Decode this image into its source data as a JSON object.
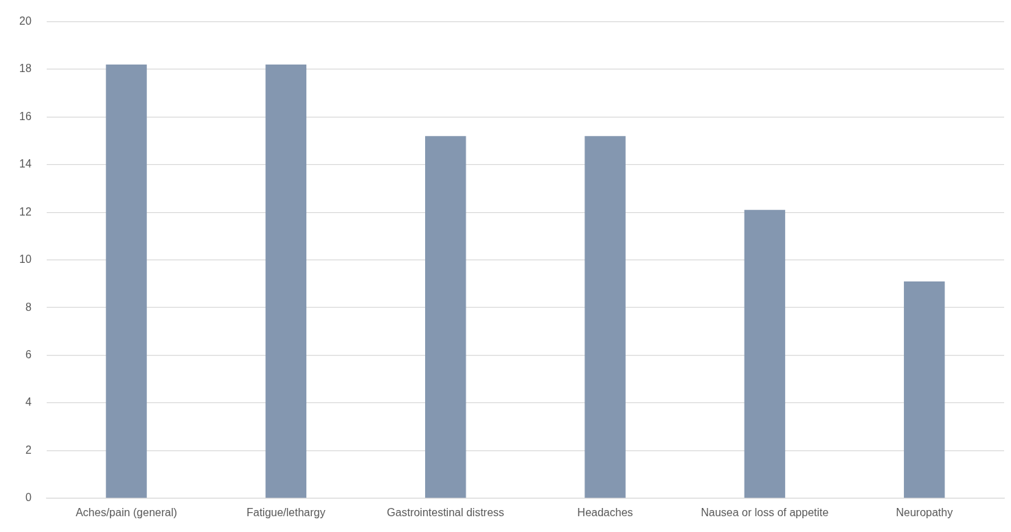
{
  "chart_data": {
    "type": "bar",
    "categories": [
      "Aches/pain (general)",
      "Fatigue/lethargy",
      "Gastrointestinal distress",
      "Headaches",
      "Nausea or loss of appetite",
      "Neuropathy"
    ],
    "values": [
      18.2,
      18.2,
      15.2,
      15.2,
      12.1,
      9.1
    ],
    "color": "#8497b0",
    "ylim": [
      0,
      20
    ],
    "yticks": [
      0,
      2,
      4,
      6,
      8,
      10,
      12,
      14,
      16,
      18,
      20
    ],
    "grid": "y",
    "legend": false
  }
}
